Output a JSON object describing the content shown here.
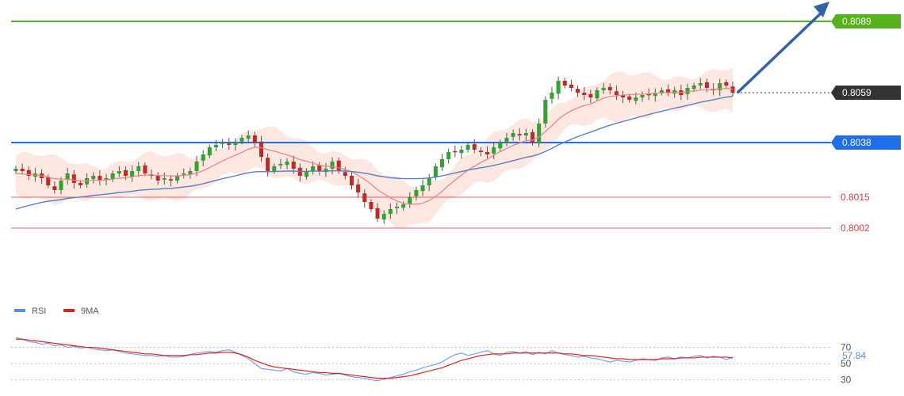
{
  "chart_data": {
    "type": "candlestick",
    "price_axis": {
      "ylim": [
        0.7974,
        0.8098
      ]
    },
    "levels": [
      {
        "name": "resistance-target",
        "value": 0.8089,
        "label": "0.8089",
        "color": "#55b21b",
        "style": "solid"
      },
      {
        "name": "current-price",
        "value": 0.8059,
        "label": "0.8059",
        "color": "#333333",
        "style": "dotted"
      },
      {
        "name": "pivot",
        "value": 0.8038,
        "label": "0.8038",
        "color": "#1f6fea",
        "style": "solid"
      },
      {
        "name": "support-1",
        "value": 0.8015,
        "label": "0.8015",
        "color": "#e5393d",
        "style": "thin"
      },
      {
        "name": "support-2",
        "value": 0.8002,
        "label": "0.8002",
        "color": "#e5393d",
        "style": "thin"
      }
    ],
    "forecast_arrow": {
      "direction": "up",
      "from": 0.8059,
      "color": "#2f64a8"
    },
    "series": {
      "close": [
        0.8027,
        0.8026,
        0.8024,
        0.8025,
        0.8023,
        0.802,
        0.8018,
        0.8022,
        0.8025,
        0.8021,
        0.802,
        0.8023,
        0.8024,
        0.8022,
        0.8023,
        0.8025,
        0.8026,
        0.8024,
        0.8026,
        0.8028,
        0.8025,
        0.8024,
        0.8022,
        0.8023,
        0.8022,
        0.8024,
        0.8025,
        0.8026,
        0.803,
        0.8033,
        0.8036,
        0.8037,
        0.8038,
        0.8037,
        0.8038,
        0.804,
        0.8041,
        0.8038,
        0.8032,
        0.8026,
        0.8028,
        0.8029,
        0.803,
        0.8027,
        0.8024,
        0.8026,
        0.8028,
        0.8026,
        0.8027,
        0.803,
        0.8026,
        0.8024,
        0.802,
        0.8017,
        0.8013,
        0.801,
        0.8006,
        0.8008,
        0.801,
        0.8011,
        0.8012,
        0.8015,
        0.8018,
        0.802,
        0.8023,
        0.8028,
        0.8031,
        0.8034,
        0.8034,
        0.8035,
        0.8037,
        0.8035,
        0.8034,
        0.8033,
        0.8036,
        0.8038,
        0.804,
        0.8042,
        0.8041,
        0.8042,
        0.8038,
        0.8046,
        0.8056,
        0.8059,
        0.8064,
        0.8062,
        0.8061,
        0.8059,
        0.8058,
        0.8057,
        0.806,
        0.8061,
        0.806,
        0.8058,
        0.8057,
        0.8056,
        0.8057,
        0.8058,
        0.8058,
        0.8059,
        0.806,
        0.8059,
        0.806,
        0.8058,
        0.8061,
        0.8062,
        0.8063,
        0.8061,
        0.806,
        0.8063,
        0.8062,
        0.8059
      ],
      "ma_fast": [
        0.8025,
        0.80248,
        0.80245,
        0.80244,
        0.8024,
        0.80235,
        0.80228,
        0.80226,
        0.80225,
        0.80222,
        0.80218,
        0.80219,
        0.80221,
        0.80221,
        0.80223,
        0.80226,
        0.8023,
        0.80232,
        0.80236,
        0.80241,
        0.80243,
        0.80244,
        0.80241,
        0.80241,
        0.80239,
        0.8024,
        0.80242,
        0.80245,
        0.80252,
        0.80262,
        0.80275,
        0.80289,
        0.80303,
        0.80315,
        0.80327,
        0.80339,
        0.80352,
        0.8036,
        0.80359,
        0.8035,
        0.80344,
        0.80336,
        0.80328,
        0.80319,
        0.80308,
        0.80301,
        0.80294,
        0.80285,
        0.8028,
        0.80279,
        0.80274,
        0.80267,
        0.80257,
        0.80242,
        0.80225,
        0.80205,
        0.80181,
        0.80164,
        0.80147,
        0.80134,
        0.80124,
        0.80121,
        0.8012,
        0.80125,
        0.80136,
        0.80154,
        0.80175,
        0.802,
        0.80222,
        0.80243,
        0.80264,
        0.8028,
        0.80296,
        0.8031,
        0.80327,
        0.80342,
        0.80355,
        0.80368,
        0.80378,
        0.80388,
        0.8039,
        0.80403,
        0.80427,
        0.80451,
        0.80478,
        0.80498,
        0.80514,
        0.80526,
        0.80536,
        0.80542,
        0.80555,
        0.80567,
        0.80574,
        0.80577,
        0.8058,
        0.80581,
        0.80583,
        0.80584,
        0.80585,
        0.80587,
        0.80589,
        0.8059,
        0.80591,
        0.80591,
        0.80594,
        0.80597,
        0.80601,
        0.80602,
        0.80603,
        0.80606,
        0.80608,
        0.80605
      ],
      "ma_slow": [
        0.801,
        0.80108,
        0.80115,
        0.80122,
        0.80128,
        0.80133,
        0.80136,
        0.8014,
        0.80145,
        0.80148,
        0.80151,
        0.80154,
        0.80158,
        0.8016,
        0.80163,
        0.80166,
        0.8017,
        0.80172,
        0.80175,
        0.80179,
        0.80181,
        0.80183,
        0.80184,
        0.80186,
        0.80187,
        0.8019,
        0.80193,
        0.80196,
        0.80201,
        0.80207,
        0.80214,
        0.80221,
        0.80228,
        0.80234,
        0.8024,
        0.80247,
        0.80253,
        0.80257,
        0.80258,
        0.80257,
        0.80258,
        0.80259,
        0.8026,
        0.8026,
        0.80259,
        0.80259,
        0.8026,
        0.8026,
        0.8026,
        0.80261,
        0.80261,
        0.8026,
        0.80258,
        0.80255,
        0.80251,
        0.80246,
        0.8024,
        0.80236,
        0.80232,
        0.8023,
        0.80228,
        0.80228,
        0.80228,
        0.80229,
        0.80231,
        0.80235,
        0.8024,
        0.80246,
        0.80252,
        0.80258,
        0.80264,
        0.80269,
        0.80274,
        0.80278,
        0.80284,
        0.8029,
        0.80297,
        0.80304,
        0.80311,
        0.80318,
        0.80323,
        0.80331,
        0.80343,
        0.80356,
        0.8037,
        0.80382,
        0.80394,
        0.80405,
        0.80415,
        0.80424,
        0.80434,
        0.80444,
        0.80453,
        0.80461,
        0.80469,
        0.80476,
        0.80484,
        0.80491,
        0.80498,
        0.80505,
        0.80512,
        0.80518,
        0.80525,
        0.8053,
        0.80537,
        0.80543,
        0.8055,
        0.80555,
        0.8056,
        0.80566,
        0.80571,
        0.80575
      ]
    },
    "legend": [
      {
        "label": "RSI",
        "color": "#5b8ee6"
      },
      {
        "label": "9MA",
        "color": "#e02020"
      }
    ],
    "rsi": {
      "ticks": [
        "70",
        "50",
        "30"
      ],
      "current_label": "57.84",
      "label_color": "#5b8ee6",
      "ylim": [
        20,
        90
      ],
      "values": [
        82,
        80,
        77,
        76,
        74,
        75,
        72,
        73,
        70,
        71,
        69,
        70,
        68,
        67,
        66,
        67,
        65,
        63,
        62,
        61,
        60,
        60,
        59,
        60,
        58,
        58,
        59,
        61,
        63,
        64,
        65,
        64,
        66,
        67,
        64,
        60,
        56,
        50,
        44,
        43,
        42,
        41,
        44,
        40,
        38,
        37,
        39,
        38,
        36,
        37,
        38,
        36,
        34,
        33,
        32,
        30,
        29,
        31,
        33,
        35,
        37,
        40,
        42,
        45,
        47,
        49,
        52,
        57,
        61,
        63,
        60,
        62,
        64,
        66,
        62,
        60,
        64,
        65,
        63,
        65,
        61,
        64,
        62,
        66,
        63,
        61,
        60,
        58,
        59,
        57,
        56,
        54,
        52,
        54,
        53,
        52,
        54,
        56,
        55,
        54,
        57,
        58,
        56,
        58,
        57,
        59,
        60,
        57,
        59,
        58,
        55,
        58
      ],
      "ma_values": [
        80,
        80,
        79,
        78,
        77,
        76,
        75,
        74,
        73,
        72,
        71,
        70,
        70,
        69,
        68,
        67,
        66,
        65,
        64,
        63,
        62,
        62,
        61,
        60,
        60,
        60,
        60,
        61,
        61,
        62,
        63,
        63,
        64,
        64,
        63,
        61,
        58,
        54,
        51,
        48,
        46,
        45,
        44,
        43,
        42,
        41,
        40,
        39,
        39,
        38,
        38,
        37,
        36,
        35,
        34,
        33,
        32,
        32,
        32,
        33,
        34,
        35,
        37,
        39,
        41,
        43,
        45,
        48,
        51,
        54,
        56,
        58,
        60,
        61,
        62,
        62,
        62,
        63,
        63,
        63,
        63,
        63,
        63,
        63,
        63,
        62,
        62,
        61,
        60,
        60,
        59,
        58,
        57,
        56,
        56,
        55,
        55,
        55,
        55,
        55,
        56,
        56,
        56,
        57,
        57,
        57,
        58,
        58,
        58,
        58,
        58,
        57
      ]
    }
  }
}
